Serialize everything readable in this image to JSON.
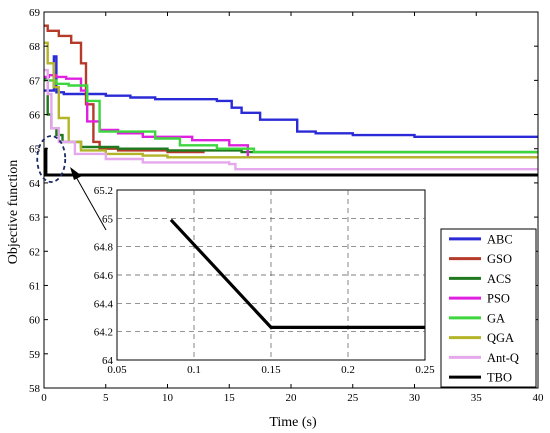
{
  "chart_data": [
    {
      "type": "line",
      "xlabel": "Time (s)",
      "ylabel": "Objective function",
      "xlim": [
        0,
        40
      ],
      "ylim": [
        58,
        69
      ],
      "xticks": [
        0,
        5,
        10,
        15,
        20,
        25,
        30,
        35,
        40
      ],
      "yticks": [
        58,
        59,
        60,
        61,
        62,
        63,
        64,
        65,
        66,
        67,
        68,
        69
      ],
      "grid": false,
      "legend": "bottom-right",
      "series": [
        {
          "name": "ABC",
          "color": "#2a2ad6",
          "x": [
            0,
            0.8,
            1.0,
            1.6,
            5.0,
            7.0,
            9.0,
            11.0,
            14.0,
            15.2,
            16.0,
            17.5,
            18.0,
            20.5,
            22.0,
            23.0,
            25.0,
            28.0,
            30.0,
            40.0
          ],
          "y": [
            66.7,
            67.7,
            66.65,
            66.6,
            66.55,
            66.5,
            66.45,
            66.45,
            66.4,
            66.2,
            66.05,
            65.85,
            65.85,
            65.5,
            65.45,
            65.45,
            65.4,
            65.4,
            65.35,
            65.35
          ]
        },
        {
          "name": "GSO",
          "color": "#b53a2a",
          "x": [
            0,
            0.3,
            1.2,
            2.2,
            3.0,
            3.4,
            4.0,
            4.5,
            6.0,
            10.0,
            13.0
          ],
          "y": [
            68.6,
            68.45,
            68.3,
            68.1,
            67.5,
            66.3,
            65.2,
            65.0,
            64.95,
            64.9,
            64.9
          ]
        },
        {
          "name": "ACS",
          "color": "#1f7a1f",
          "x": [
            0,
            0.3,
            0.6,
            1.0,
            1.5,
            3.0,
            6.0,
            10.0,
            16.0,
            40.0
          ],
          "y": [
            67.05,
            66.0,
            65.6,
            65.4,
            65.2,
            65.05,
            65.0,
            64.95,
            64.9,
            64.9
          ]
        },
        {
          "name": "PSO",
          "color": "#e020e0",
          "x": [
            0,
            0.4,
            1.0,
            1.8,
            3.0,
            3.5,
            4.5,
            6.0,
            8.0,
            12.0,
            15.0,
            16.5,
            40.0
          ],
          "y": [
            67.1,
            67.15,
            67.1,
            67.05,
            66.7,
            65.8,
            65.55,
            65.45,
            65.35,
            65.25,
            65.1,
            64.75,
            64.75
          ]
        },
        {
          "name": "GA",
          "color": "#3ed63e",
          "x": [
            0,
            0.5,
            1.0,
            2.0,
            3.5,
            4.5,
            7.0,
            9.0,
            11.0,
            14.0,
            17.0,
            40.0
          ],
          "y": [
            67.0,
            67.0,
            66.9,
            66.85,
            66.4,
            65.5,
            65.5,
            65.3,
            65.1,
            65.0,
            64.9,
            64.9
          ]
        },
        {
          "name": "QGA",
          "color": "#b4b428",
          "x": [
            0,
            0.3,
            0.8,
            1.2,
            2.0,
            3.0,
            5.0,
            8.0,
            10.0,
            40.0
          ],
          "y": [
            68.1,
            67.5,
            66.8,
            65.9,
            65.2,
            64.95,
            64.85,
            64.8,
            64.75,
            64.75
          ]
        },
        {
          "name": "Ant-Q",
          "color": "#e6a8ec",
          "x": [
            0,
            0.3,
            0.6,
            1.2,
            2.5,
            5.0,
            8.0,
            15.0,
            15.5,
            40.0
          ],
          "y": [
            67.3,
            66.6,
            65.6,
            65.2,
            64.85,
            64.7,
            64.6,
            64.55,
            64.4,
            64.4
          ]
        },
        {
          "name": "TBO",
          "color": "#000000",
          "x": [
            0.085,
            0.15,
            40.0
          ],
          "y": [
            64.99,
            64.23,
            64.23
          ]
        }
      ]
    },
    {
      "type": "line",
      "xlim": [
        0.05,
        0.25
      ],
      "ylim": [
        64,
        65.2
      ],
      "xticks": [
        0.05,
        0.1,
        0.15,
        0.2,
        0.25
      ],
      "xtick_labels": [
        "0.05",
        "0.1",
        "0.15",
        "0.2",
        "0.25"
      ],
      "yticks": [
        64,
        64.2,
        64.4,
        64.6,
        64.8,
        65,
        65.2
      ],
      "ytick_labels": [
        "64",
        "64.2",
        "64.4",
        "64.6",
        "64.8",
        "65",
        "65.2"
      ],
      "grid": true,
      "series": [
        {
          "name": "TBO",
          "color": "#000000",
          "x": [
            0.085,
            0.15,
            0.25
          ],
          "y": [
            64.99,
            64.23,
            64.23
          ]
        }
      ]
    }
  ]
}
